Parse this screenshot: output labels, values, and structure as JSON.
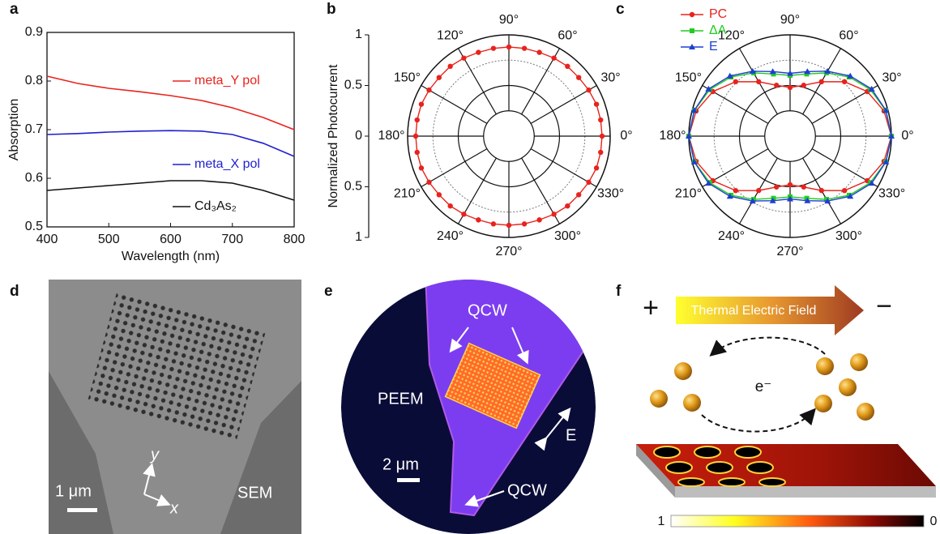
{
  "chart_data": [
    {
      "type": "line",
      "label": "a",
      "xlabel": "Wavelength (nm)",
      "ylabel": "Absorption",
      "x": [
        400,
        450,
        500,
        550,
        600,
        650,
        700,
        750,
        800
      ],
      "series": [
        {
          "name": "meta_Y pol",
          "color": "#e8231d",
          "values": [
            0.81,
            0.795,
            0.785,
            0.778,
            0.77,
            0.76,
            0.745,
            0.725,
            0.7
          ]
        },
        {
          "name": "meta_X pol",
          "color": "#1f1fd0",
          "values": [
            0.69,
            0.692,
            0.695,
            0.697,
            0.698,
            0.697,
            0.69,
            0.672,
            0.645
          ]
        },
        {
          "name": "Cd₃As₂",
          "color": "#111111",
          "values": [
            0.575,
            0.58,
            0.585,
            0.59,
            0.595,
            0.595,
            0.59,
            0.575,
            0.555
          ]
        }
      ],
      "xlim": [
        400,
        800
      ],
      "xticks": [
        400,
        500,
        600,
        700,
        800
      ],
      "ylim": [
        0.5,
        0.9
      ],
      "yticks": [
        0.5,
        0.6,
        0.7,
        0.8,
        0.9
      ]
    },
    {
      "type": "polar",
      "label": "b",
      "ylabel": "Normalized Photocurrent",
      "color": "#e8231d",
      "marker": "circle",
      "theta": [
        0,
        10,
        20,
        30,
        40,
        50,
        60,
        70,
        80,
        90,
        100,
        110,
        120,
        130,
        140,
        150,
        160,
        170,
        180,
        190,
        200,
        210,
        220,
        230,
        240,
        250,
        260,
        270,
        280,
        290,
        300,
        310,
        320,
        330,
        340,
        350
      ],
      "values": [
        0.92,
        0.92,
        0.92,
        0.91,
        0.9,
        0.9,
        0.89,
        0.88,
        0.88,
        0.88,
        0.88,
        0.88,
        0.89,
        0.9,
        0.9,
        0.91,
        0.92,
        0.92,
        0.92,
        0.92,
        0.92,
        0.91,
        0.9,
        0.9,
        0.89,
        0.88,
        0.88,
        0.88,
        0.88,
        0.88,
        0.89,
        0.9,
        0.9,
        0.91,
        0.92,
        0.92
      ],
      "rlim": [
        0,
        1
      ],
      "ylim": [
        -1,
        1
      ],
      "yticks": [
        1,
        0.5,
        0,
        {
          "value": -0.5,
          "label": "0.5"
        },
        {
          "value": -1,
          "label": "1"
        }
      ],
      "thetaticks": [
        {
          "value": 0,
          "label": "0°"
        },
        {
          "value": 30,
          "label": "30°"
        },
        {
          "value": 60,
          "label": "60°"
        },
        {
          "value": 90,
          "label": "90°"
        },
        {
          "value": 120,
          "label": "120°"
        },
        {
          "value": 150,
          "label": "150°"
        },
        {
          "value": 180,
          "label": "180°"
        },
        {
          "value": 210,
          "label": "210°"
        },
        {
          "value": 240,
          "label": "240°"
        },
        {
          "value": 270,
          "label": "270°"
        },
        {
          "value": 300,
          "label": "300°"
        },
        {
          "value": 330,
          "label": "330°"
        }
      ]
    },
    {
      "type": "polar",
      "label": "c",
      "legend": "upper left",
      "theta": [
        0,
        15,
        30,
        45,
        60,
        75,
        90,
        105,
        120,
        135,
        150,
        165,
        180,
        195,
        210,
        225,
        240,
        255,
        270,
        285,
        300,
        315,
        330,
        345
      ],
      "series": [
        {
          "name": "PC",
          "color": "#e8231d",
          "marker": "circle",
          "values": [
            1,
            0.96,
            0.88,
            0.76,
            0.62,
            0.52,
            0.48,
            0.52,
            0.62,
            0.76,
            0.88,
            0.96,
            1,
            0.96,
            0.88,
            0.76,
            0.62,
            0.52,
            0.48,
            0.52,
            0.62,
            0.76,
            0.88,
            0.96
          ]
        },
        {
          "name": "ΔA",
          "color": "#22cc22",
          "marker": "square",
          "values": [
            1,
            0.978,
            0.917,
            0.825,
            0.721,
            0.635,
            0.6,
            0.635,
            0.721,
            0.825,
            0.917,
            0.978,
            1,
            0.978,
            0.917,
            0.825,
            0.721,
            0.635,
            0.6,
            0.635,
            0.721,
            0.825,
            0.917,
            0.978
          ]
        },
        {
          "name": "E",
          "color": "#1f3fd0",
          "marker": "triangle",
          "values": [
            1,
            0.98,
            0.93,
            0.84,
            0.74,
            0.66,
            0.62,
            0.66,
            0.74,
            0.84,
            0.93,
            0.98,
            1,
            0.98,
            0.93,
            0.84,
            0.74,
            0.66,
            0.62,
            0.66,
            0.74,
            0.84,
            0.93,
            0.98
          ]
        }
      ],
      "rlim": [
        0,
        1
      ],
      "thetaticks": [
        {
          "value": 0,
          "label": "0°"
        },
        {
          "value": 30,
          "label": "30°"
        },
        {
          "value": 60,
          "label": "60°"
        },
        {
          "value": 90,
          "label": "90°"
        },
        {
          "value": 120,
          "label": "120°"
        },
        {
          "value": 150,
          "label": "150°"
        },
        {
          "value": 180,
          "label": "180°"
        },
        {
          "value": 210,
          "label": "210°"
        },
        {
          "value": 240,
          "label": "240°"
        },
        {
          "value": 270,
          "label": "270°"
        },
        {
          "value": 300,
          "label": "300°"
        },
        {
          "value": 330,
          "label": "330°"
        }
      ]
    }
  ],
  "images": [
    {
      "label": "d",
      "scale_bar": "1 μm",
      "caption": "SEM",
      "axis_y": "y",
      "axis_x": "x"
    },
    {
      "label": "e",
      "qcw_top": "QCW",
      "peem": "PEEM",
      "scale_bar": "2 μm",
      "qcw_bottom": "QCW",
      "field": "E"
    },
    {
      "label": "f",
      "plus": "+",
      "arrow": "Thermal Electric Field",
      "minus": "−",
      "electron": "e⁻",
      "colorbar_max": 1,
      "colorbar_min": 0
    }
  ]
}
